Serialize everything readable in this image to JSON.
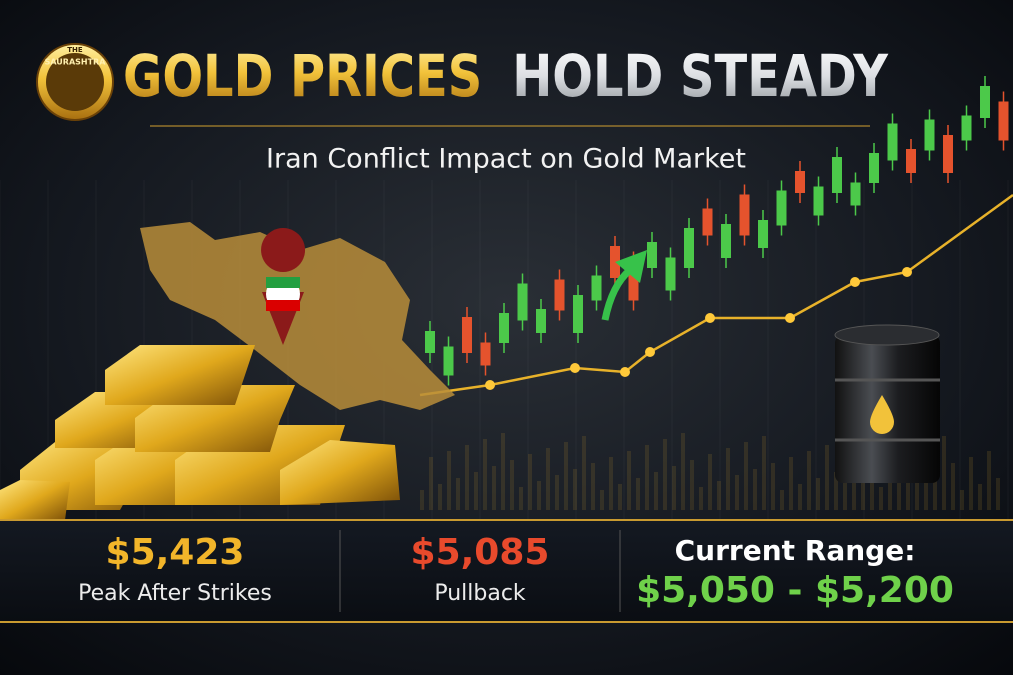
{
  "logo": {
    "top": "THE",
    "name": "SAURASHTRA"
  },
  "header": {
    "title_gold": "GOLD PRICES",
    "title_silver": "HOLD STEADY",
    "subtitle": "Iran Conflict Impact on Gold Market"
  },
  "stats": [
    {
      "value": "$5,423",
      "label": "Peak After Strikes"
    },
    {
      "value": "$5,085",
      "label": "Pullback"
    },
    {
      "value": "$5,050 - $5,200",
      "label": "Current Range:"
    }
  ]
}
